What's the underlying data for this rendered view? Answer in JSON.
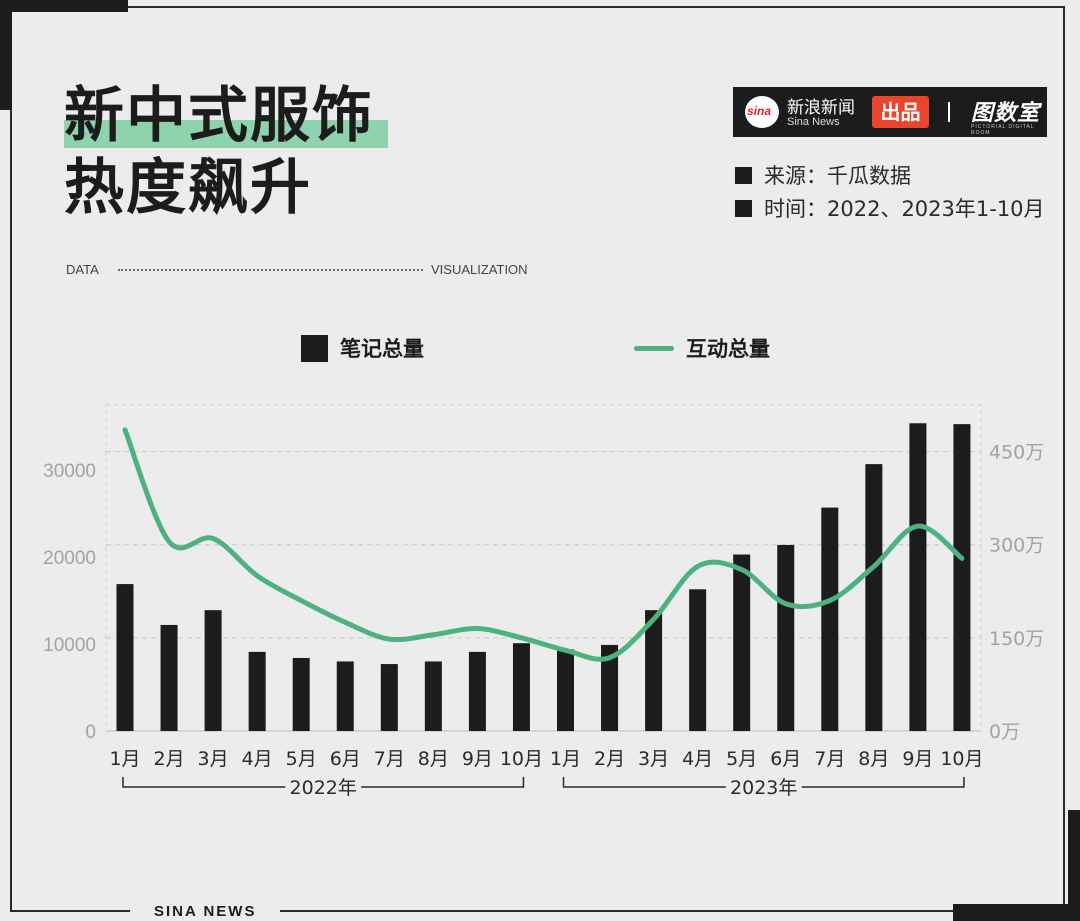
{
  "title": {
    "line1": "新中式服饰",
    "line2": "热度飙升"
  },
  "banner": {
    "left": "DATA",
    "right": "VISUALIZATION"
  },
  "brand": {
    "logo_text": "sina",
    "name_cn": "新浪新闻",
    "name_en": "Sina News",
    "product_tag": "出品",
    "partner": "图数室",
    "partner_sub": "PICTORIAL DIGITAL ROOM"
  },
  "meta": {
    "source": "来源：千瓜数据",
    "time": "时间：2022、2023年1-10月"
  },
  "footer": "SINA NEWS",
  "colors": {
    "bar": "#1c1c1c",
    "line": "#4db27d",
    "highlight": "#8ed3ad",
    "badge_bg": "#1c1c1c",
    "tag_red": "#e8452c"
  },
  "chart_data": {
    "type": "bar",
    "legend_placement": "top",
    "grid": true,
    "categories": [
      "1月",
      "2月",
      "3月",
      "4月",
      "5月",
      "6月",
      "7月",
      "8月",
      "9月",
      "10月",
      "1月",
      "2月",
      "3月",
      "4月",
      "5月",
      "6月",
      "7月",
      "8月",
      "9月",
      "10月"
    ],
    "year_groups": [
      {
        "label": "2022年",
        "from": 0,
        "to": 9
      },
      {
        "label": "2023年",
        "from": 10,
        "to": 19
      }
    ],
    "series": [
      {
        "name": "笔记总量",
        "type": "bar",
        "axis": "left",
        "values": [
          16900,
          12200,
          13900,
          9100,
          8400,
          8000,
          7700,
          8000,
          9100,
          10100,
          9400,
          9900,
          13900,
          16300,
          20300,
          21400,
          25700,
          30700,
          35400,
          35300
        ]
      },
      {
        "name": "互动总量",
        "type": "line",
        "axis": "right",
        "unit": "万",
        "values": [
          485,
          305,
          310,
          250,
          210,
          175,
          148,
          155,
          165,
          150,
          130,
          118,
          180,
          265,
          260,
          205,
          210,
          265,
          330,
          278
        ]
      }
    ],
    "left_axis": {
      "ticks": [
        0,
        10000,
        20000,
        30000
      ],
      "range": [
        0,
        37500
      ]
    },
    "right_axis": {
      "ticks": [
        "0万",
        "150万",
        "300万",
        "450万"
      ],
      "tick_values": [
        0,
        150,
        300,
        450
      ],
      "range": [
        0,
        525
      ]
    }
  }
}
